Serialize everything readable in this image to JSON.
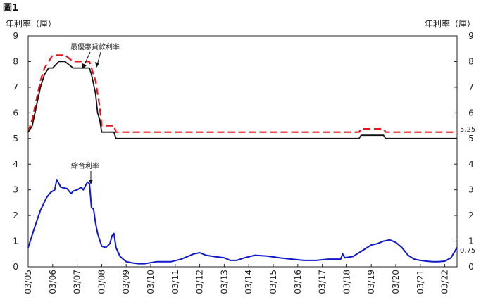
{
  "chart_data": {
    "type": "line",
    "figure_label": "圖1",
    "left_axis_title": "年利率（厘）",
    "right_axis_title": "年利率（厘）",
    "ylim": [
      0,
      9
    ],
    "yticks": [
      "0",
      "1",
      "2",
      "3",
      "4",
      "5",
      "6",
      "7",
      "8",
      "9"
    ],
    "xticks": [
      "03/05",
      "03/06",
      "03/07",
      "03/08",
      "03/09",
      "03/10",
      "03/11",
      "03/12",
      "03/13",
      "03/14",
      "03/15",
      "03/16",
      "03/17",
      "03/18",
      "03/19",
      "03/20",
      "03/21",
      "03/22"
    ],
    "xlim": [
      "2005-03",
      "2022-09"
    ],
    "grid": false,
    "annotations": [
      {
        "text": "最優惠貸款利率"
      },
      {
        "text": "綜合利率"
      }
    ],
    "end_labels": [
      {
        "text": "5.25",
        "value": 5.25
      },
      {
        "text": "0.75",
        "value": 0.75
      }
    ],
    "series": [
      {
        "name": "最優惠貸款利率",
        "style": "dashed",
        "color": "#e8141c",
        "x": [
          "2005-03",
          "2005-05",
          "2005-07",
          "2005-09",
          "2005-11",
          "2006-01",
          "2006-03",
          "2006-06",
          "2006-09",
          "2007-01",
          "2007-06",
          "2007-09",
          "2007-10",
          "2007-12",
          "2008-01",
          "2008-02",
          "2008-03",
          "2008-05",
          "2008-07",
          "2008-09",
          "2008-10",
          "2008-11",
          "2009-01",
          "2010-01",
          "2012-01",
          "2014-01",
          "2016-01",
          "2018-01",
          "2018-09",
          "2018-10",
          "2019-06",
          "2019-09",
          "2019-10",
          "2020-01",
          "2022-01",
          "2022-09"
        ],
        "values": [
          5.25,
          5.75,
          6.5,
          7.25,
          7.75,
          8.0,
          8.25,
          8.25,
          8.25,
          8.0,
          8.0,
          8.0,
          7.75,
          7.25,
          6.75,
          6.25,
          5.5,
          5.5,
          5.5,
          5.5,
          5.25,
          5.25,
          5.25,
          5.25,
          5.25,
          5.25,
          5.25,
          5.25,
          5.25,
          5.375,
          5.375,
          5.375,
          5.25,
          5.25,
          5.25,
          5.25
        ]
      },
      {
        "name": "",
        "style": "solid",
        "color": "#111111",
        "x": [
          "2005-03",
          "2005-05",
          "2005-07",
          "2005-09",
          "2005-11",
          "2006-01",
          "2006-03",
          "2006-06",
          "2006-09",
          "2007-01",
          "2007-06",
          "2007-09",
          "2007-10",
          "2007-12",
          "2008-01",
          "2008-02",
          "2008-03",
          "2008-05",
          "2008-07",
          "2008-09",
          "2008-10",
          "2008-11",
          "2009-01",
          "2010-01",
          "2012-01",
          "2014-01",
          "2016-01",
          "2018-01",
          "2018-09",
          "2018-10",
          "2019-06",
          "2019-09",
          "2019-10",
          "2020-01",
          "2022-01",
          "2022-09"
        ],
        "values": [
          5.25,
          5.5,
          6.25,
          7.0,
          7.5,
          7.75,
          7.75,
          8.0,
          8.0,
          7.75,
          7.75,
          7.75,
          7.5,
          6.75,
          6.0,
          5.75,
          5.25,
          5.25,
          5.25,
          5.25,
          5.0,
          5.0,
          5.0,
          5.0,
          5.0,
          5.0,
          5.0,
          5.0,
          5.0,
          5.125,
          5.125,
          5.125,
          5.0,
          5.0,
          5.0,
          5.0
        ]
      },
      {
        "name": "綜合利率",
        "style": "solid",
        "color": "#1018cc",
        "x": [
          "2005-03",
          "2005-06",
          "2005-09",
          "2005-12",
          "2006-02",
          "2006-04",
          "2006-05",
          "2006-07",
          "2006-10",
          "2006-12",
          "2007-01",
          "2007-03",
          "2007-05",
          "2007-06",
          "2007-08",
          "2007-09",
          "2007-10",
          "2007-11",
          "2007-12",
          "2008-01",
          "2008-03",
          "2008-05",
          "2008-07",
          "2008-08",
          "2008-09",
          "2008-10",
          "2008-12",
          "2009-03",
          "2009-06",
          "2009-09",
          "2009-12",
          "2010-06",
          "2011-01",
          "2011-06",
          "2011-12",
          "2012-03",
          "2012-06",
          "2012-10",
          "2013-03",
          "2013-06",
          "2013-09",
          "2014-01",
          "2014-06",
          "2014-12",
          "2015-06",
          "2015-12",
          "2016-06",
          "2016-12",
          "2017-06",
          "2017-12",
          "2018-01",
          "2018-02",
          "2018-06",
          "2018-09",
          "2018-12",
          "2019-03",
          "2019-06",
          "2019-09",
          "2019-12",
          "2020-03",
          "2020-06",
          "2020-09",
          "2020-12",
          "2021-03",
          "2021-06",
          "2021-09",
          "2021-12",
          "2022-03",
          "2022-06",
          "2022-09"
        ],
        "values": [
          0.75,
          1.5,
          2.2,
          2.7,
          2.9,
          3.0,
          3.4,
          3.1,
          3.05,
          2.85,
          2.95,
          3.0,
          3.1,
          3.0,
          3.3,
          3.25,
          2.3,
          2.25,
          1.7,
          1.3,
          0.8,
          0.75,
          0.9,
          1.2,
          1.3,
          0.75,
          0.4,
          0.2,
          0.15,
          0.12,
          0.12,
          0.2,
          0.2,
          0.3,
          0.5,
          0.55,
          0.45,
          0.4,
          0.35,
          0.25,
          0.25,
          0.35,
          0.45,
          0.42,
          0.35,
          0.3,
          0.25,
          0.25,
          0.3,
          0.3,
          0.5,
          0.35,
          0.4,
          0.55,
          0.7,
          0.85,
          0.9,
          1.0,
          1.05,
          0.95,
          0.75,
          0.45,
          0.3,
          0.25,
          0.22,
          0.2,
          0.2,
          0.22,
          0.35,
          0.75
        ]
      }
    ]
  }
}
